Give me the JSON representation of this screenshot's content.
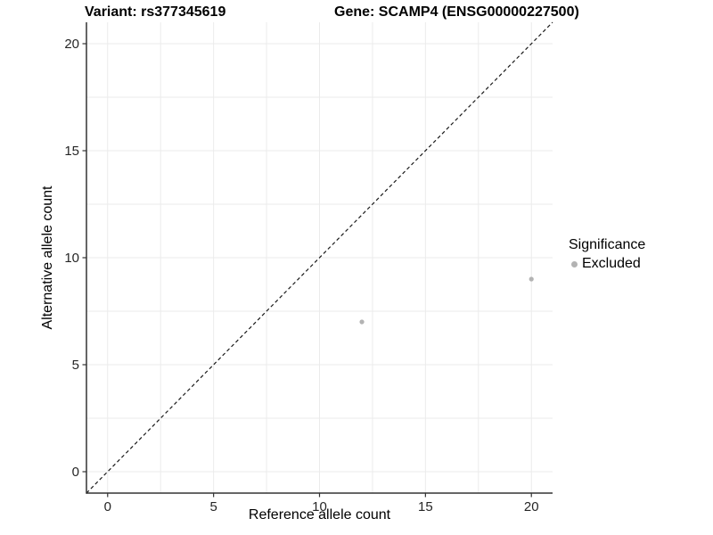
{
  "header": {
    "variant_title": "Variant: rs377345619",
    "gene_title": "Gene: SCAMP4 (ENSG00000227500)"
  },
  "chart_data": {
    "type": "scatter",
    "title": "Variant: rs377345619    Gene: SCAMP4 (ENSG00000227500)",
    "xlabel": "Reference allele count",
    "ylabel": "Alternative allele count",
    "xlim": [
      -1,
      21
    ],
    "ylim": [
      -1,
      21
    ],
    "xticks": [
      0,
      5,
      10,
      15,
      20
    ],
    "yticks": [
      0,
      5,
      10,
      15,
      20
    ],
    "grid": true,
    "grid_interval": 2.5,
    "grid_color": "#ebebeb",
    "axis_color": "#333333",
    "tick_text_color": "#262626",
    "identity_line": {
      "style": "dashed",
      "from": [
        -1,
        -1
      ],
      "to": [
        21,
        21
      ],
      "color": "#1a1a1a"
    },
    "series": [
      {
        "name": "Excluded",
        "color": "#b3b3b3",
        "points": [
          {
            "x": 12,
            "y": 7
          },
          {
            "x": 20,
            "y": 9
          }
        ]
      }
    ],
    "legend": {
      "title": "Significance",
      "position": "right",
      "items": [
        {
          "label": "Excluded",
          "color": "#b3b3b3"
        }
      ]
    }
  }
}
